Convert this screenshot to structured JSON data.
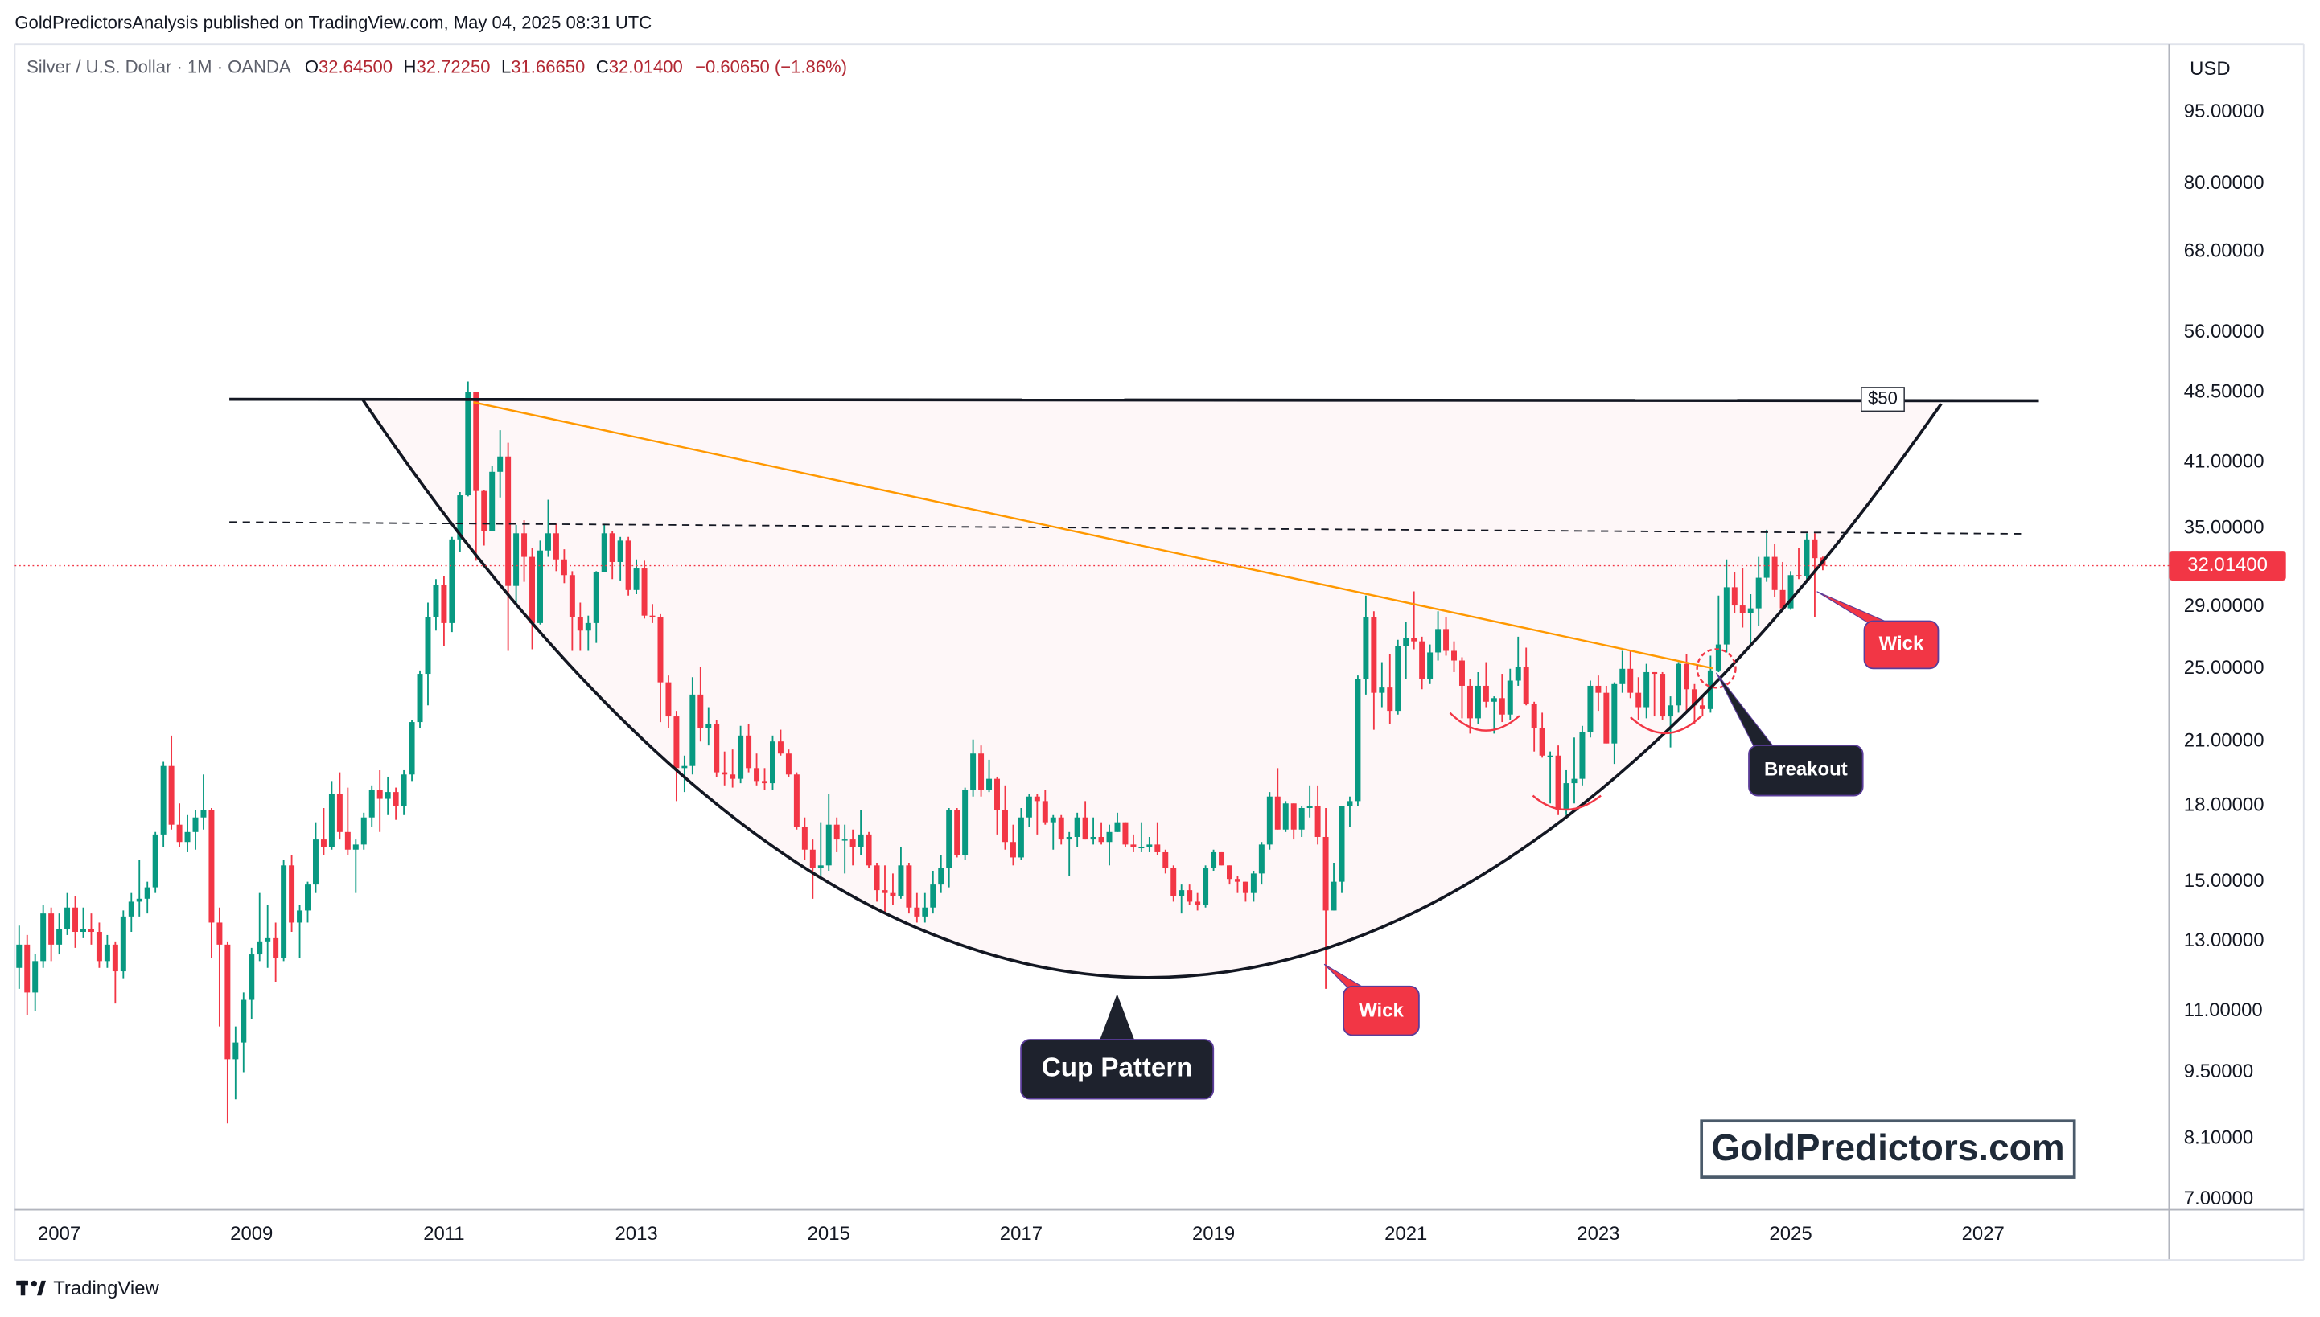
{
  "header": {
    "publisher": "GoldPredictorsAnalysis published on TradingView.com, May 04, 2025 08:31 UTC"
  },
  "legend": {
    "symbol": "Silver / U.S. Dollar · 1M · OANDA",
    "fields": [
      {
        "key": "O",
        "value": "32.64500"
      },
      {
        "key": "H",
        "value": "32.72250"
      },
      {
        "key": "L",
        "value": "31.66650"
      },
      {
        "key": "C",
        "value": "32.01400"
      }
    ],
    "change": "−0.60650 (−1.86%)"
  },
  "currency": "USD",
  "annotations": {
    "cup": "Cup Pattern",
    "wick_low": "Wick",
    "wick_high": "Wick",
    "breakout": "Breakout",
    "resistance": "$50"
  },
  "watermark": "GoldPredictors.com",
  "footer": "TradingView",
  "chart_data": {
    "type": "candlestick",
    "log_scale": true,
    "grid": false,
    "up_color": "#089981",
    "down_color": "#f23645",
    "last_price": {
      "value": 32.014,
      "label": "32.01400"
    },
    "xlim": [
      -0.54,
      268.2
    ],
    "xticks": [
      {
        "value": 5,
        "label": "2007"
      },
      {
        "value": 29,
        "label": "2009"
      },
      {
        "value": 53,
        "label": "2011"
      },
      {
        "value": 77,
        "label": "2013"
      },
      {
        "value": 101,
        "label": "2015"
      },
      {
        "value": 125,
        "label": "2017"
      },
      {
        "value": 149,
        "label": "2019"
      },
      {
        "value": 173,
        "label": "2021"
      },
      {
        "value": 197,
        "label": "2023"
      },
      {
        "value": 221,
        "label": "2025"
      },
      {
        "value": 245,
        "label": "2027"
      }
    ],
    "ylim": [
      6.83,
      111.8
    ],
    "yticks": [
      {
        "value": 95,
        "label": "95.00000"
      },
      {
        "value": 80,
        "label": "80.00000"
      },
      {
        "value": 68,
        "label": "68.00000"
      },
      {
        "value": 56,
        "label": "56.00000"
      },
      {
        "value": 48.5,
        "label": "48.50000"
      },
      {
        "value": 41,
        "label": "41.00000"
      },
      {
        "value": 35,
        "label": "35.00000"
      },
      {
        "value": 29,
        "label": "29.00000"
      },
      {
        "value": 25,
        "label": "25.00000"
      },
      {
        "value": 21,
        "label": "21.00000"
      },
      {
        "value": 18,
        "label": "18.00000"
      },
      {
        "value": 15,
        "label": "15.00000"
      },
      {
        "value": 13,
        "label": "13.00000"
      },
      {
        "value": 11,
        "label": "11.00000"
      },
      {
        "value": 9.5,
        "label": "9.50000"
      },
      {
        "value": 8.1,
        "label": "8.10000"
      },
      {
        "value": 7,
        "label": "7.00000"
      }
    ],
    "candles": [
      [
        12.2,
        13.5,
        11.6,
        12.9
      ],
      [
        12.9,
        13.2,
        10.9,
        11.5
      ],
      [
        11.5,
        12.6,
        11.0,
        12.4
      ],
      [
        12.4,
        14.2,
        12.2,
        13.9
      ],
      [
        13.9,
        14.1,
        12.4,
        12.9
      ],
      [
        12.9,
        13.9,
        12.6,
        13.4
      ],
      [
        13.4,
        14.6,
        13.2,
        14.1
      ],
      [
        14.1,
        14.5,
        12.8,
        13.3
      ],
      [
        13.3,
        14.1,
        13.1,
        13.4
      ],
      [
        13.4,
        13.9,
        12.9,
        13.3
      ],
      [
        13.3,
        13.6,
        12.2,
        12.4
      ],
      [
        12.4,
        13.2,
        12.2,
        12.9
      ],
      [
        12.9,
        13.0,
        11.2,
        12.1
      ],
      [
        12.1,
        14.0,
        11.9,
        13.8
      ],
      [
        13.8,
        14.6,
        13.3,
        14.3
      ],
      [
        14.3,
        15.8,
        13.8,
        14.4
      ],
      [
        14.4,
        15.0,
        13.9,
        14.8
      ],
      [
        14.8,
        16.9,
        14.6,
        16.8
      ],
      [
        16.8,
        20.0,
        16.3,
        19.8
      ],
      [
        19.8,
        21.3,
        17.0,
        17.2
      ],
      [
        17.2,
        18.1,
        16.3,
        16.5
      ],
      [
        16.5,
        17.6,
        16.1,
        16.9
      ],
      [
        16.9,
        17.8,
        16.2,
        17.5
      ],
      [
        17.5,
        19.4,
        17.0,
        17.8
      ],
      [
        17.8,
        17.9,
        12.5,
        13.6
      ],
      [
        13.6,
        14.1,
        10.6,
        12.9
      ],
      [
        12.9,
        13.0,
        8.4,
        9.8
      ],
      [
        9.8,
        10.6,
        8.9,
        10.2
      ],
      [
        10.2,
        11.5,
        9.5,
        11.3
      ],
      [
        11.3,
        12.8,
        10.8,
        12.6
      ],
      [
        12.6,
        14.6,
        12.4,
        13.0
      ],
      [
        13.0,
        14.2,
        12.2,
        13.1
      ],
      [
        13.1,
        13.6,
        11.8,
        12.5
      ],
      [
        12.5,
        15.8,
        12.4,
        15.6
      ],
      [
        15.6,
        16.0,
        13.3,
        13.6
      ],
      [
        13.6,
        14.2,
        12.5,
        14.0
      ],
      [
        14.0,
        15.0,
        13.6,
        14.9
      ],
      [
        14.9,
        17.3,
        14.6,
        16.6
      ],
      [
        16.6,
        17.9,
        16.0,
        16.3
      ],
      [
        16.3,
        19.1,
        16.2,
        18.5
      ],
      [
        18.5,
        19.5,
        16.6,
        16.9
      ],
      [
        16.9,
        18.8,
        16.0,
        16.2
      ],
      [
        16.2,
        16.6,
        14.6,
        16.4
      ],
      [
        16.4,
        17.7,
        16.2,
        17.5
      ],
      [
        17.5,
        18.9,
        17.1,
        18.7
      ],
      [
        18.7,
        19.6,
        16.9,
        18.3
      ],
      [
        18.3,
        19.3,
        17.6,
        18.6
      ],
      [
        18.6,
        18.8,
        17.4,
        18.0
      ],
      [
        18.0,
        19.6,
        17.6,
        19.4
      ],
      [
        19.4,
        22.1,
        19.1,
        22.0
      ],
      [
        22.0,
        24.9,
        21.7,
        24.7
      ],
      [
        24.7,
        29.3,
        22.9,
        28.3
      ],
      [
        28.3,
        31.0,
        27.4,
        30.6
      ],
      [
        30.6,
        31.2,
        26.4,
        27.9
      ],
      [
        27.9,
        34.3,
        27.3,
        34.1
      ],
      [
        34.1,
        38.2,
        33.1,
        37.9
      ],
      [
        37.9,
        49.8,
        37.8,
        48.6
      ],
      [
        48.6,
        48.6,
        32.4,
        38.3
      ],
      [
        38.3,
        38.4,
        33.6,
        34.8
      ],
      [
        34.8,
        40.7,
        34.8,
        40.1
      ],
      [
        40.1,
        44.3,
        37.7,
        41.6
      ],
      [
        41.6,
        43.0,
        26.1,
        30.5
      ],
      [
        30.5,
        35.3,
        29.2,
        34.6
      ],
      [
        34.6,
        35.7,
        30.8,
        32.7
      ],
      [
        32.7,
        33.4,
        26.2,
        27.9
      ],
      [
        27.9,
        34.0,
        27.8,
        33.2
      ],
      [
        33.2,
        37.5,
        32.7,
        34.6
      ],
      [
        34.6,
        35.4,
        31.6,
        32.5
      ],
      [
        32.5,
        33.3,
        30.7,
        31.3
      ],
      [
        31.3,
        31.6,
        26.1,
        28.3
      ],
      [
        28.3,
        29.3,
        26.1,
        27.4
      ],
      [
        27.4,
        28.4,
        26.1,
        27.9
      ],
      [
        27.9,
        31.6,
        26.6,
        31.5
      ],
      [
        31.5,
        35.4,
        31.5,
        34.6
      ],
      [
        34.6,
        34.8,
        31.0,
        32.3
      ],
      [
        32.3,
        34.3,
        30.9,
        34.0
      ],
      [
        34.0,
        34.3,
        29.8,
        30.2
      ],
      [
        30.2,
        32.5,
        29.9,
        31.8
      ],
      [
        31.8,
        32.4,
        28.2,
        28.4
      ],
      [
        28.4,
        29.2,
        27.9,
        28.3
      ],
      [
        28.3,
        28.5,
        22.0,
        24.2
      ],
      [
        24.2,
        24.6,
        21.7,
        22.3
      ],
      [
        22.3,
        22.6,
        18.2,
        19.7
      ],
      [
        19.7,
        20.3,
        18.6,
        19.8
      ],
      [
        19.8,
        24.5,
        19.4,
        23.5
      ],
      [
        23.5,
        25.1,
        21.0,
        21.7
      ],
      [
        21.7,
        22.8,
        20.8,
        21.9
      ],
      [
        21.9,
        22.1,
        19.3,
        19.5
      ],
      [
        19.5,
        20.5,
        18.9,
        19.4
      ],
      [
        19.4,
        20.6,
        18.8,
        19.2
      ],
      [
        19.2,
        21.8,
        19.0,
        21.3
      ],
      [
        21.3,
        21.9,
        19.5,
        19.7
      ],
      [
        19.7,
        20.4,
        18.9,
        19.1
      ],
      [
        19.1,
        19.7,
        18.7,
        19.0
      ],
      [
        19.0,
        21.3,
        18.7,
        21.0
      ],
      [
        21.0,
        21.6,
        20.3,
        20.4
      ],
      [
        20.4,
        20.6,
        19.3,
        19.4
      ],
      [
        19.4,
        19.5,
        17.0,
        17.1
      ],
      [
        17.1,
        17.5,
        15.8,
        16.2
      ],
      [
        16.2,
        16.6,
        14.4,
        15.5
      ],
      [
        15.5,
        17.3,
        15.2,
        15.6
      ],
      [
        15.6,
        18.5,
        15.4,
        17.2
      ],
      [
        17.2,
        17.5,
        16.1,
        16.6
      ],
      [
        16.6,
        17.2,
        15.3,
        16.6
      ],
      [
        16.6,
        17.0,
        15.6,
        16.3
      ],
      [
        16.3,
        17.8,
        16.0,
        16.8
      ],
      [
        16.8,
        16.9,
        15.5,
        15.6
      ],
      [
        15.6,
        15.7,
        14.3,
        14.7
      ],
      [
        14.7,
        15.6,
        13.9,
        14.6
      ],
      [
        14.6,
        15.3,
        14.2,
        14.5
      ],
      [
        14.5,
        16.3,
        14.4,
        15.6
      ],
      [
        15.6,
        15.7,
        13.9,
        14.1
      ],
      [
        14.1,
        14.6,
        13.6,
        13.8
      ],
      [
        13.8,
        14.6,
        13.6,
        14.1
      ],
      [
        14.1,
        15.4,
        13.9,
        14.9
      ],
      [
        14.9,
        16.0,
        14.6,
        15.5
      ],
      [
        15.5,
        17.9,
        14.8,
        17.8
      ],
      [
        17.8,
        17.9,
        15.9,
        16.0
      ],
      [
        16.0,
        18.8,
        15.8,
        18.7
      ],
      [
        18.7,
        21.1,
        18.4,
        20.4
      ],
      [
        20.4,
        20.8,
        18.4,
        18.7
      ],
      [
        18.7,
        20.1,
        18.6,
        19.2
      ],
      [
        19.2,
        19.3,
        16.8,
        17.8
      ],
      [
        17.8,
        18.9,
        16.2,
        16.5
      ],
      [
        16.5,
        17.2,
        15.6,
        15.9
      ],
      [
        15.9,
        17.9,
        15.8,
        17.5
      ],
      [
        17.5,
        18.5,
        17.1,
        18.4
      ],
      [
        18.4,
        18.5,
        16.8,
        18.2
      ],
      [
        18.2,
        18.7,
        17.2,
        17.3
      ],
      [
        17.3,
        17.6,
        16.2,
        17.5
      ],
      [
        17.5,
        17.6,
        16.4,
        16.6
      ],
      [
        16.6,
        16.9,
        15.2,
        16.7
      ],
      [
        16.7,
        17.7,
        16.3,
        17.5
      ],
      [
        17.5,
        18.2,
        16.6,
        16.6
      ],
      [
        16.6,
        17.5,
        16.4,
        16.7
      ],
      [
        16.7,
        17.3,
        16.4,
        16.5
      ],
      [
        16.5,
        17.2,
        15.6,
        16.9
      ],
      [
        16.9,
        17.7,
        16.9,
        17.3
      ],
      [
        17.3,
        17.3,
        16.3,
        16.4
      ],
      [
        16.4,
        16.8,
        16.1,
        16.3
      ],
      [
        16.3,
        17.3,
        16.1,
        16.3
      ],
      [
        16.3,
        16.7,
        16.1,
        16.4
      ],
      [
        16.4,
        17.3,
        16.0,
        16.1
      ],
      [
        16.1,
        16.2,
        15.3,
        15.5
      ],
      [
        15.5,
        15.6,
        14.3,
        14.5
      ],
      [
        14.5,
        14.9,
        13.9,
        14.7
      ],
      [
        14.7,
        14.9,
        14.2,
        14.3
      ],
      [
        14.3,
        14.6,
        14.0,
        14.2
      ],
      [
        14.2,
        15.6,
        14.1,
        15.5
      ],
      [
        15.5,
        16.2,
        15.4,
        16.1
      ],
      [
        16.1,
        16.1,
        15.6,
        15.6
      ],
      [
        15.6,
        15.6,
        14.9,
        15.1
      ],
      [
        15.1,
        15.2,
        14.6,
        15.0
      ],
      [
        15.0,
        15.0,
        14.3,
        14.6
      ],
      [
        14.6,
        15.4,
        14.3,
        15.3
      ],
      [
        15.3,
        16.5,
        14.9,
        16.4
      ],
      [
        16.4,
        18.6,
        16.2,
        18.4
      ],
      [
        18.4,
        19.7,
        17.0,
        17.0
      ],
      [
        17.0,
        18.2,
        16.9,
        18.1
      ],
      [
        18.1,
        18.1,
        16.6,
        17.0
      ],
      [
        17.0,
        18.0,
        16.7,
        17.9
      ],
      [
        17.9,
        18.9,
        17.5,
        18.0
      ],
      [
        18.0,
        18.9,
        16.4,
        16.7
      ],
      [
        16.7,
        17.9,
        11.6,
        14.0
      ],
      [
        14.0,
        15.7,
        14.0,
        15.0
      ],
      [
        15.0,
        18.0,
        14.6,
        18.0
      ],
      [
        18.0,
        18.4,
        17.1,
        18.2
      ],
      [
        18.2,
        24.6,
        18.0,
        24.4
      ],
      [
        24.4,
        29.8,
        23.5,
        28.3
      ],
      [
        28.3,
        28.7,
        21.6,
        23.6
      ],
      [
        23.6,
        25.4,
        22.8,
        23.9
      ],
      [
        23.9,
        25.9,
        21.9,
        22.6
      ],
      [
        22.6,
        26.8,
        22.4,
        26.4
      ],
      [
        26.4,
        28.0,
        24.4,
        26.9
      ],
      [
        26.9,
        30.1,
        26.2,
        26.7
      ],
      [
        26.7,
        27.0,
        23.8,
        24.4
      ],
      [
        24.4,
        26.5,
        24.1,
        26.0
      ],
      [
        26.0,
        28.7,
        25.5,
        27.5
      ],
      [
        27.5,
        28.3,
        25.8,
        26.1
      ],
      [
        26.1,
        26.7,
        24.8,
        25.5
      ],
      [
        25.5,
        25.7,
        22.2,
        24.0
      ],
      [
        24.0,
        24.4,
        21.4,
        22.2
      ],
      [
        22.2,
        24.8,
        21.9,
        24.0
      ],
      [
        24.0,
        25.4,
        22.8,
        23.1
      ],
      [
        23.1,
        23.4,
        21.4,
        23.3
      ],
      [
        23.3,
        24.7,
        22.0,
        22.4
      ],
      [
        22.4,
        25.0,
        22.1,
        24.3
      ],
      [
        24.3,
        27.0,
        24.0,
        25.1
      ],
      [
        25.1,
        26.3,
        22.9,
        23.0
      ],
      [
        23.0,
        23.1,
        20.5,
        21.7
      ],
      [
        21.7,
        22.5,
        20.2,
        20.3
      ],
      [
        20.3,
        20.5,
        18.1,
        20.3
      ],
      [
        20.3,
        20.8,
        17.6,
        17.8
      ],
      [
        17.8,
        19.6,
        17.6,
        19.0
      ],
      [
        19.0,
        21.2,
        18.1,
        19.2
      ],
      [
        19.2,
        21.8,
        18.9,
        21.5
      ],
      [
        21.5,
        24.3,
        21.2,
        24.0
      ],
      [
        24.0,
        24.6,
        22.6,
        23.6
      ],
      [
        23.6,
        24.0,
        20.9,
        20.9
      ],
      [
        20.9,
        24.2,
        19.9,
        24.1
      ],
      [
        24.1,
        26.1,
        23.6,
        25.0
      ],
      [
        25.0,
        26.1,
        23.3,
        23.6
      ],
      [
        23.6,
        24.5,
        22.1,
        22.8
      ],
      [
        22.8,
        25.3,
        22.2,
        24.8
      ],
      [
        24.8,
        24.8,
        22.3,
        24.7
      ],
      [
        24.7,
        24.8,
        22.1,
        22.3
      ],
      [
        22.3,
        23.4,
        20.7,
        22.9
      ],
      [
        22.9,
        25.4,
        22.5,
        25.3
      ],
      [
        25.3,
        25.9,
        22.5,
        23.8
      ],
      [
        23.8,
        24.1,
        21.9,
        22.9
      ],
      [
        22.9,
        23.4,
        22.3,
        22.7
      ],
      [
        22.7,
        25.8,
        22.5,
        24.9
      ],
      [
        24.9,
        29.8,
        24.8,
        26.5
      ],
      [
        26.5,
        32.5,
        26.0,
        30.4
      ],
      [
        30.4,
        31.5,
        28.6,
        29.1
      ],
      [
        29.1,
        31.8,
        27.6,
        28.6
      ],
      [
        28.6,
        29.9,
        26.5,
        28.9
      ],
      [
        28.9,
        32.7,
        27.7,
        31.1
      ],
      [
        31.1,
        34.9,
        30.8,
        32.7
      ],
      [
        32.7,
        33.7,
        29.7,
        30.2
      ],
      [
        30.2,
        32.3,
        28.7,
        28.9
      ],
      [
        28.9,
        31.6,
        28.8,
        31.3
      ],
      [
        31.3,
        33.4,
        31.0,
        31.2
      ],
      [
        31.2,
        34.6,
        31.0,
        34.1
      ],
      [
        34.1,
        34.6,
        28.3,
        32.6
      ],
      [
        32.645,
        32.7225,
        31.6665,
        32.014
      ]
    ]
  }
}
